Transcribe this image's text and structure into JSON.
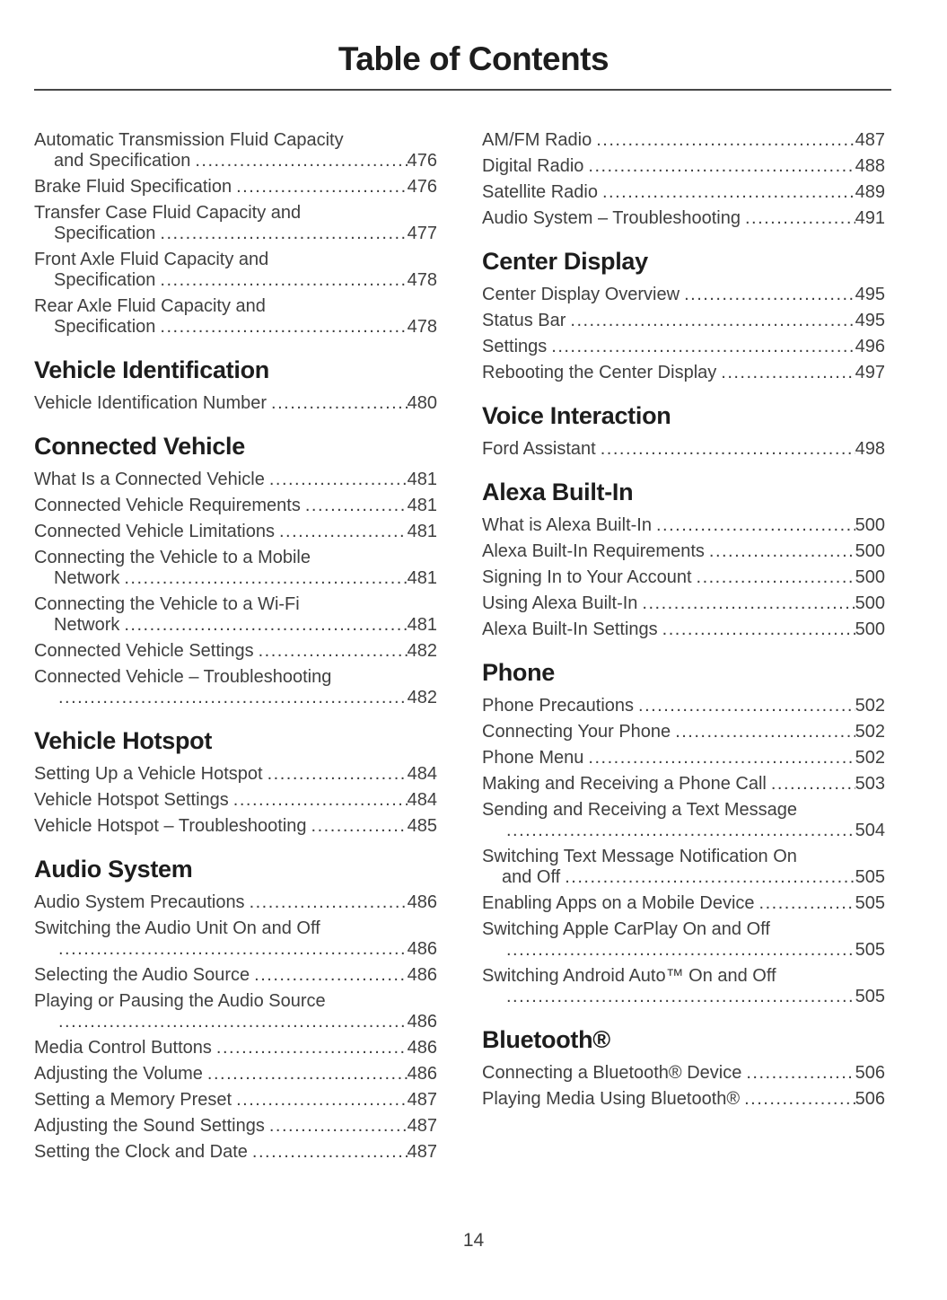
{
  "title": "Table of Contents",
  "page_number": "14",
  "colors": {
    "background": "#ffffff",
    "heading_text": "#1d1d1d",
    "body_text": "#3f3f3f",
    "divider": "#474747"
  },
  "columns": [
    {
      "sections": [
        {
          "heading": null,
          "entries": [
            {
              "lines": [
                "Automatic Transmission Fluid Capacity",
                "and Specification"
              ],
              "page": "476"
            },
            {
              "lines": [
                "Brake Fluid Specification"
              ],
              "page": "476"
            },
            {
              "lines": [
                "Transfer Case Fluid Capacity and",
                "Specification"
              ],
              "page": "477"
            },
            {
              "lines": [
                "Front Axle Fluid Capacity and",
                "Specification"
              ],
              "page": "478"
            },
            {
              "lines": [
                "Rear Axle Fluid Capacity and",
                "Specification"
              ],
              "page": "478"
            }
          ]
        },
        {
          "heading": "Vehicle Identification",
          "entries": [
            {
              "lines": [
                "Vehicle Identification Number"
              ],
              "page": "480"
            }
          ]
        },
        {
          "heading": "Connected Vehicle",
          "entries": [
            {
              "lines": [
                "What Is a Connected Vehicle"
              ],
              "page": "481"
            },
            {
              "lines": [
                "Connected Vehicle Requirements"
              ],
              "page": "481"
            },
            {
              "lines": [
                "Connected Vehicle Limitations"
              ],
              "page": "481"
            },
            {
              "lines": [
                "Connecting the Vehicle to a Mobile",
                "Network"
              ],
              "page": "481"
            },
            {
              "lines": [
                "Connecting the Vehicle to a Wi-Fi",
                "Network"
              ],
              "page": "481"
            },
            {
              "lines": [
                "Connected Vehicle Settings"
              ],
              "page": "482"
            },
            {
              "lines": [
                "Connected Vehicle – Troubleshooting",
                ""
              ],
              "page": "482"
            }
          ]
        },
        {
          "heading": "Vehicle Hotspot",
          "entries": [
            {
              "lines": [
                "Setting Up a Vehicle Hotspot"
              ],
              "page": "484"
            },
            {
              "lines": [
                "Vehicle Hotspot Settings"
              ],
              "page": "484"
            },
            {
              "lines": [
                "Vehicle Hotspot – Troubleshooting"
              ],
              "page": "485"
            }
          ]
        },
        {
          "heading": "Audio System",
          "entries": [
            {
              "lines": [
                "Audio System Precautions"
              ],
              "page": "486"
            },
            {
              "lines": [
                "Switching the Audio Unit On and Off",
                ""
              ],
              "page": "486"
            },
            {
              "lines": [
                "Selecting the Audio Source"
              ],
              "page": "486"
            },
            {
              "lines": [
                "Playing or Pausing the Audio Source",
                ""
              ],
              "page": "486"
            },
            {
              "lines": [
                "Media Control Buttons"
              ],
              "page": "486"
            },
            {
              "lines": [
                "Adjusting the Volume"
              ],
              "page": "486"
            },
            {
              "lines": [
                "Setting a Memory Preset"
              ],
              "page": "487"
            },
            {
              "lines": [
                "Adjusting the Sound Settings"
              ],
              "page": "487"
            },
            {
              "lines": [
                "Setting the Clock and Date"
              ],
              "page": "487"
            }
          ]
        }
      ]
    },
    {
      "sections": [
        {
          "heading": null,
          "entries": [
            {
              "lines": [
                "AM/FM Radio"
              ],
              "page": "487"
            },
            {
              "lines": [
                "Digital Radio"
              ],
              "page": "488"
            },
            {
              "lines": [
                "Satellite Radio"
              ],
              "page": "489"
            },
            {
              "lines": [
                "Audio System – Troubleshooting"
              ],
              "page": "491"
            }
          ]
        },
        {
          "heading": "Center Display",
          "entries": [
            {
              "lines": [
                "Center Display Overview"
              ],
              "page": "495"
            },
            {
              "lines": [
                "Status Bar"
              ],
              "page": "495"
            },
            {
              "lines": [
                "Settings"
              ],
              "page": "496"
            },
            {
              "lines": [
                "Rebooting the Center Display"
              ],
              "page": "497"
            }
          ]
        },
        {
          "heading": "Voice Interaction",
          "entries": [
            {
              "lines": [
                "Ford Assistant"
              ],
              "page": "498"
            }
          ]
        },
        {
          "heading": "Alexa Built-In",
          "entries": [
            {
              "lines": [
                "What is Alexa Built-In"
              ],
              "page": "500"
            },
            {
              "lines": [
                "Alexa Built-In Requirements"
              ],
              "page": "500"
            },
            {
              "lines": [
                "Signing In to Your Account"
              ],
              "page": "500"
            },
            {
              "lines": [
                "Using Alexa Built-In"
              ],
              "page": "500"
            },
            {
              "lines": [
                "Alexa Built-In Settings"
              ],
              "page": "500"
            }
          ]
        },
        {
          "heading": "Phone",
          "entries": [
            {
              "lines": [
                "Phone Precautions"
              ],
              "page": "502"
            },
            {
              "lines": [
                "Connecting Your Phone"
              ],
              "page": "502"
            },
            {
              "lines": [
                "Phone Menu"
              ],
              "page": "502"
            },
            {
              "lines": [
                "Making and Receiving a Phone Call"
              ],
              "page": "503"
            },
            {
              "lines": [
                "Sending and Receiving a Text Message",
                ""
              ],
              "page": "504"
            },
            {
              "lines": [
                "Switching Text Message Notification On",
                "and Off"
              ],
              "page": "505"
            },
            {
              "lines": [
                "Enabling Apps on a Mobile Device"
              ],
              "page": "505"
            },
            {
              "lines": [
                "Switching Apple CarPlay On and Off",
                ""
              ],
              "page": "505"
            },
            {
              "lines": [
                "Switching Android Auto™ On and Off",
                ""
              ],
              "page": "505"
            }
          ]
        },
        {
          "heading": "Bluetooth®",
          "entries": [
            {
              "lines": [
                "Connecting a Bluetooth® Device"
              ],
              "page": "506"
            },
            {
              "lines": [
                "Playing Media Using Bluetooth®"
              ],
              "page": "506"
            }
          ]
        }
      ]
    }
  ]
}
